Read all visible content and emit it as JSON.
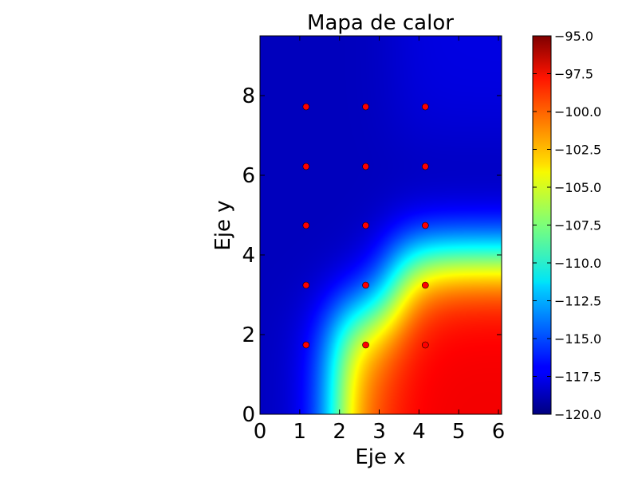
{
  "chart_data": {
    "type": "heatmap",
    "title": "Mapa de calor",
    "xlabel": "Eje x",
    "ylabel": "Eje y",
    "xlim": [
      0,
      6.08
    ],
    "ylim": [
      0,
      9.5
    ],
    "x_ticks": [
      0,
      1,
      2,
      3,
      4,
      5,
      6
    ],
    "x_tick_labels": [
      "0",
      "1",
      "2",
      "3",
      "4",
      "5",
      "6"
    ],
    "y_ticks": [
      0,
      2,
      4,
      6,
      8
    ],
    "y_tick_labels": [
      "0",
      "2",
      "4",
      "6",
      "8"
    ],
    "colormap": "jet",
    "colorbar": {
      "min": -120.0,
      "max": -95.0,
      "ticks": [
        -95.0,
        -97.5,
        -100.0,
        -102.5,
        -105.0,
        -107.5,
        -110.0,
        -112.5,
        -115.0,
        -117.5,
        -120.0
      ],
      "tick_labels": [
        "−95.0",
        "−97.5",
        "−100.0",
        "−102.5",
        "−105.0",
        "−107.5",
        "−110.0",
        "−112.5",
        "−115.0",
        "−117.5",
        "−120.0"
      ]
    },
    "grid": false,
    "marker_color": "#ff0000",
    "points": [
      {
        "x": 1.16,
        "y": 7.72,
        "value": -120
      },
      {
        "x": 2.66,
        "y": 7.72,
        "value": -120
      },
      {
        "x": 4.16,
        "y": 7.72,
        "value": -119
      },
      {
        "x": 1.16,
        "y": 6.22,
        "value": -120
      },
      {
        "x": 2.66,
        "y": 6.22,
        "value": -120
      },
      {
        "x": 4.16,
        "y": 6.22,
        "value": -120
      },
      {
        "x": 1.16,
        "y": 4.74,
        "value": -120
      },
      {
        "x": 2.66,
        "y": 4.74,
        "value": -120
      },
      {
        "x": 4.16,
        "y": 4.74,
        "value": -120
      },
      {
        "x": 1.16,
        "y": 3.24,
        "value": -120
      },
      {
        "x": 2.66,
        "y": 3.24,
        "value": -120
      },
      {
        "x": 4.16,
        "y": 3.24,
        "value": -99
      },
      {
        "x": 1.16,
        "y": 1.74,
        "value": -120
      },
      {
        "x": 2.66,
        "y": 1.74,
        "value": -100
      },
      {
        "x": 4.16,
        "y": 1.74,
        "value": -98
      }
    ]
  }
}
